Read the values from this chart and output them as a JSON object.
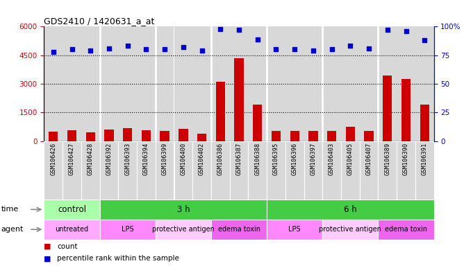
{
  "title": "GDS2410 / 1420631_a_at",
  "samples": [
    "GSM106426",
    "GSM106427",
    "GSM106428",
    "GSM106392",
    "GSM106393",
    "GSM106394",
    "GSM106399",
    "GSM106400",
    "GSM106402",
    "GSM106386",
    "GSM106387",
    "GSM106388",
    "GSM106395",
    "GSM106396",
    "GSM106397",
    "GSM106403",
    "GSM106405",
    "GSM106407",
    "GSM106389",
    "GSM106390",
    "GSM106391"
  ],
  "counts": [
    480,
    550,
    440,
    600,
    680,
    560,
    540,
    640,
    400,
    3100,
    4350,
    1900,
    520,
    540,
    510,
    520,
    760,
    520,
    3450,
    3250,
    1900
  ],
  "percentiles": [
    78,
    80,
    79,
    81,
    83,
    80,
    80,
    82,
    79,
    98,
    97,
    89,
    80,
    80,
    79,
    80,
    83,
    81,
    97,
    96,
    88
  ],
  "bar_color": "#cc0000",
  "dot_color": "#0000cc",
  "ylim_left": [
    0,
    6000
  ],
  "ylim_right": [
    0,
    100
  ],
  "yticks_left": [
    0,
    1500,
    3000,
    4500,
    6000
  ],
  "ytick_labels_left": [
    "0",
    "1500",
    "3000",
    "4500",
    "6000"
  ],
  "yticks_right": [
    0,
    25,
    50,
    75,
    100
  ],
  "ytick_labels_right": [
    "0",
    "25",
    "50",
    "75",
    "100%"
  ],
  "hlines": [
    1500,
    3000,
    4500
  ],
  "time_groups": [
    {
      "label": "control",
      "start": 0,
      "end": 3,
      "color": "#aaffaa"
    },
    {
      "label": "3 h",
      "start": 3,
      "end": 12,
      "color": "#44cc44"
    },
    {
      "label": "6 h",
      "start": 12,
      "end": 21,
      "color": "#44cc44"
    }
  ],
  "agent_groups": [
    {
      "label": "untreated",
      "start": 0,
      "end": 3,
      "color": "#ffaaff"
    },
    {
      "label": "LPS",
      "start": 3,
      "end": 6,
      "color": "#ff88ff"
    },
    {
      "label": "protective antigen",
      "start": 6,
      "end": 9,
      "color": "#ffccff"
    },
    {
      "label": "edema toxin",
      "start": 9,
      "end": 12,
      "color": "#ee66ee"
    },
    {
      "label": "LPS",
      "start": 12,
      "end": 15,
      "color": "#ff88ff"
    },
    {
      "label": "protective antigen",
      "start": 15,
      "end": 18,
      "color": "#ffccff"
    },
    {
      "label": "edema toxin",
      "start": 18,
      "end": 21,
      "color": "#ee66ee"
    }
  ],
  "legend_count_label": "count",
  "legend_pct_label": "percentile rank within the sample",
  "label_time": "time",
  "label_agent": "agent",
  "col_bg": "#d8d8d8",
  "plot_bg": "#ffffff",
  "sep_color": "#ffffff"
}
